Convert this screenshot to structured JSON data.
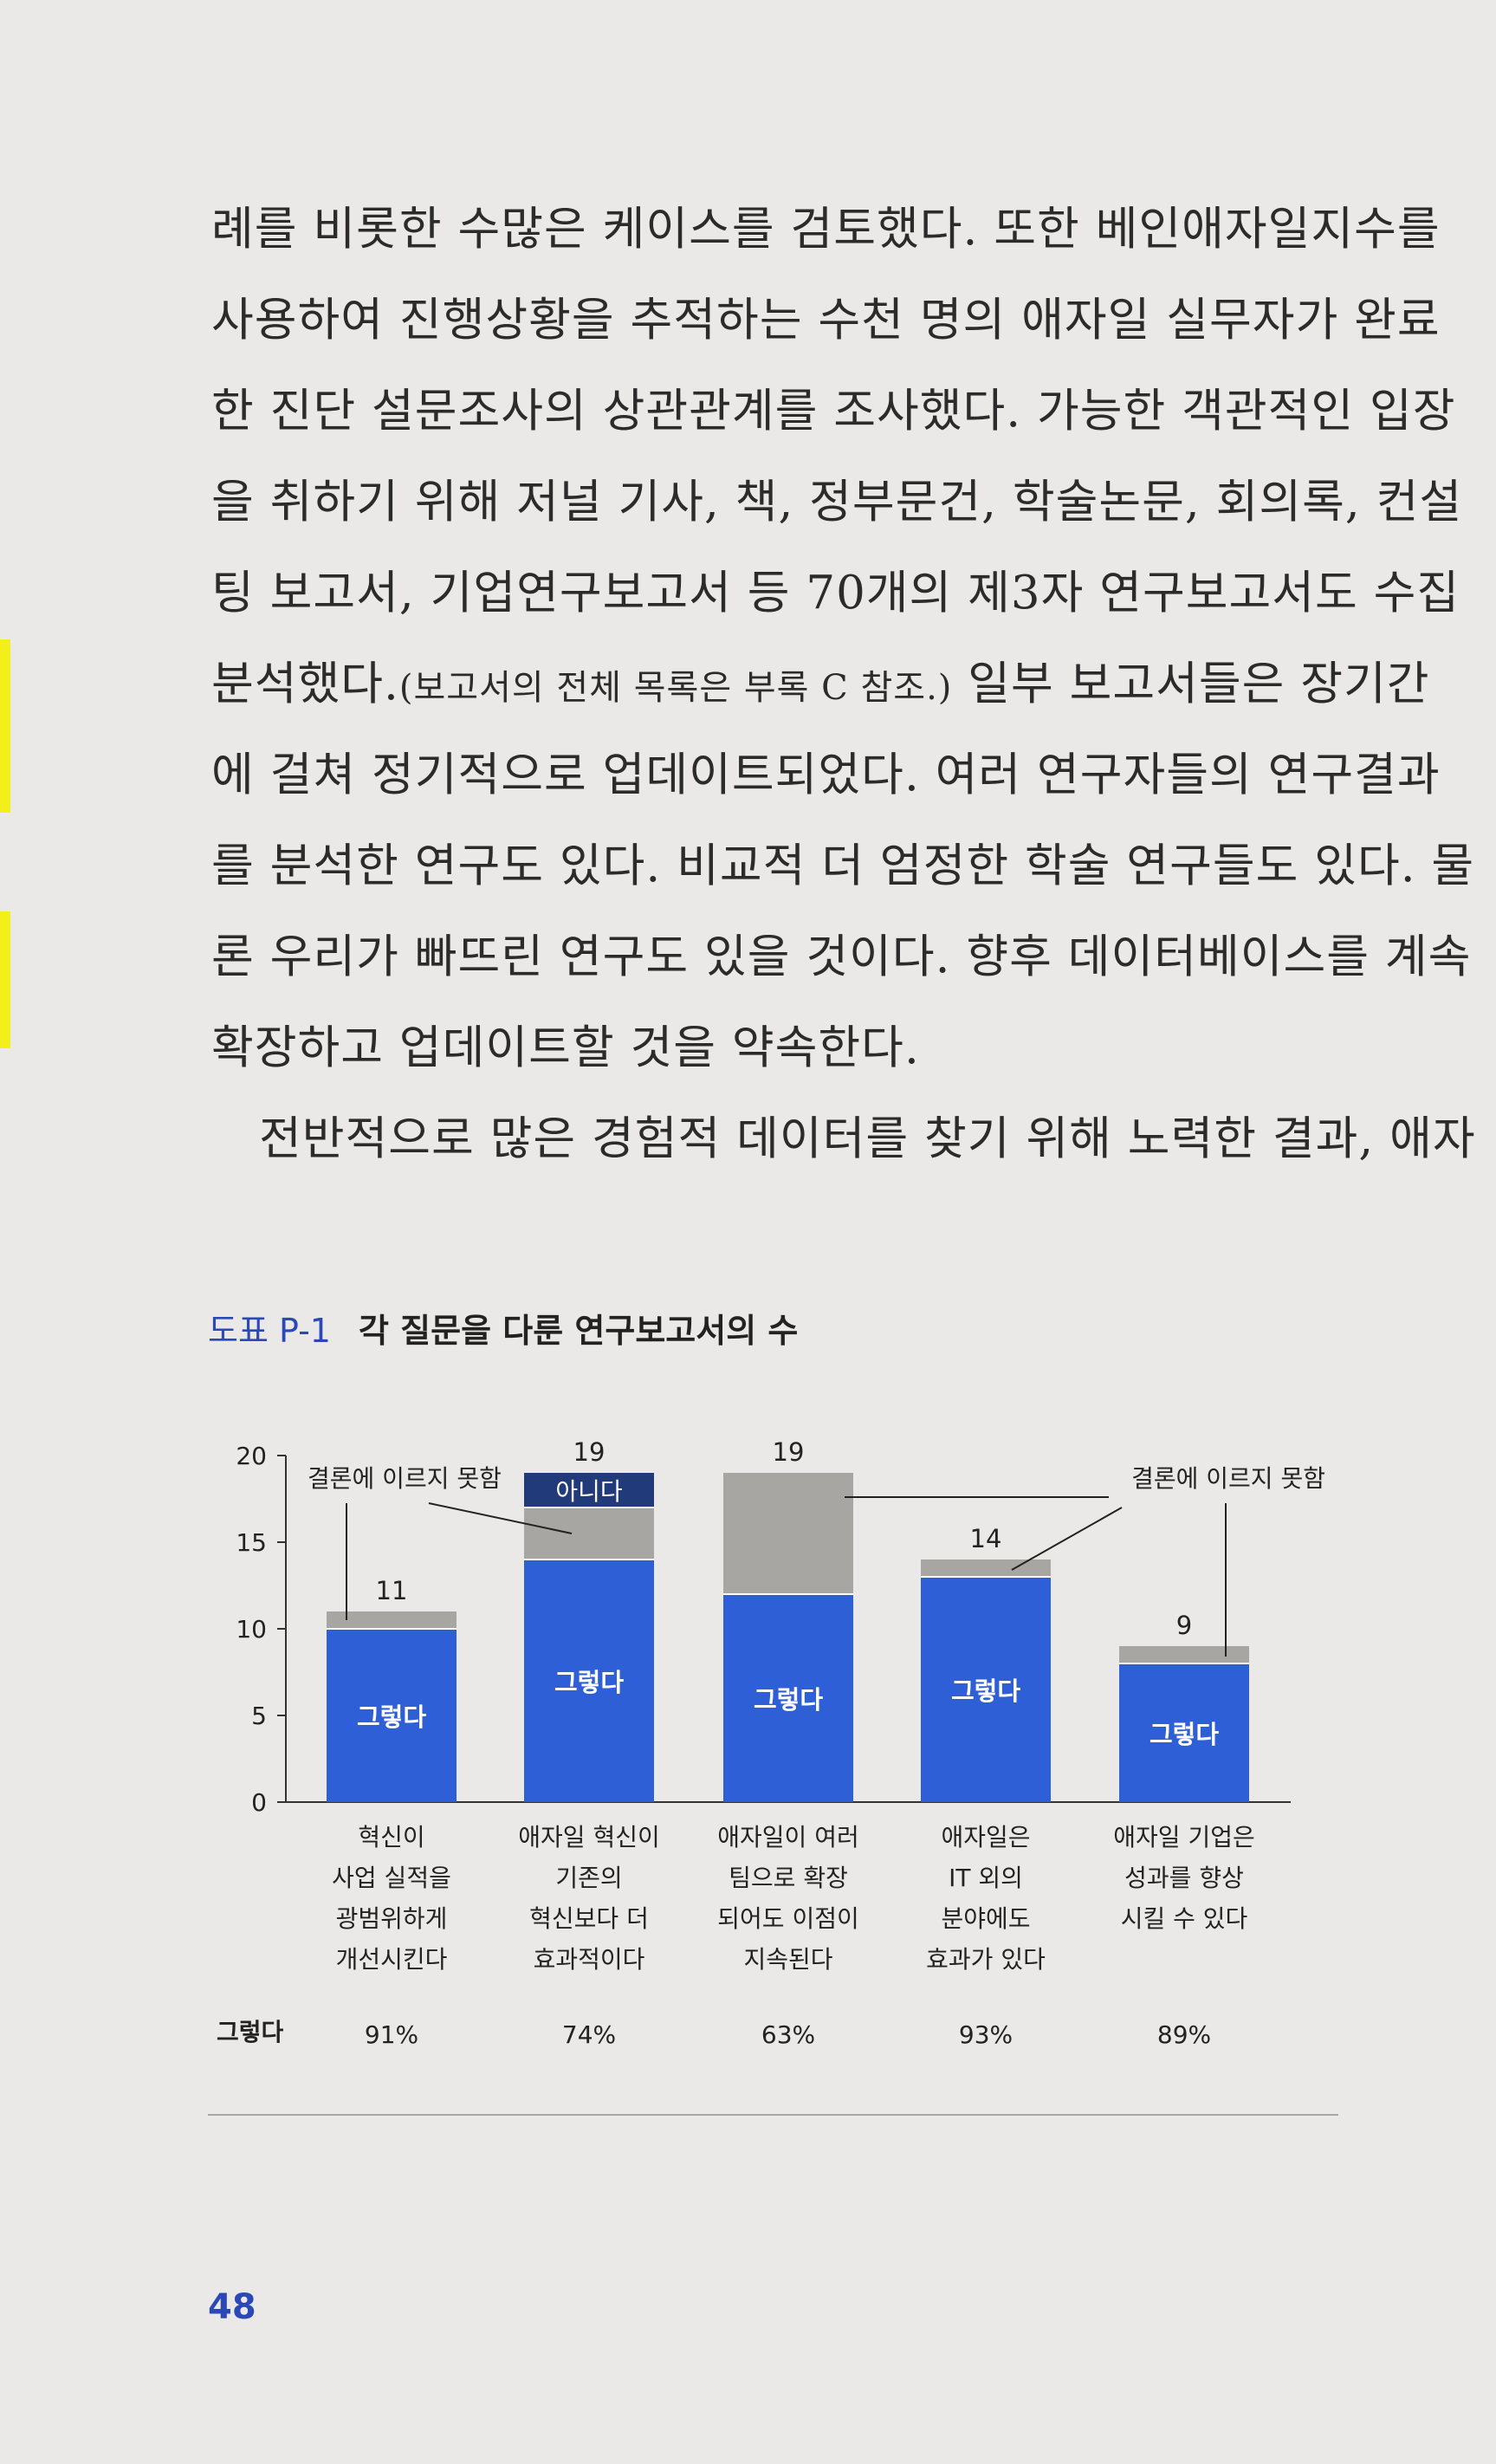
{
  "body_lines": [
    "례를 비롯한 수많은 케이스를 검토했다. 또한 베인애자일지수를",
    "사용하여 진행상황을 추적하는 수천 명의 애자일 실무자가 완료",
    "한 진단 설문조사의 상관관계를 조사했다. 가능한 객관적인 입장",
    "을 취하기 위해 저널 기사, 책, 정부문건, 학술논문, 회의록, 컨설",
    "팅 보고서, 기업연구보고서 등 70개의 제3자 연구보고서도 수집"
  ],
  "line6": {
    "start": "분석했다.",
    "small": "(보고서의 전체 목록은 부록 C 참조.)",
    "end": " 일부 보고서들은 장기간"
  },
  "body_lines2": [
    "에 걸쳐 정기적으로 업데이트되었다. 여러 연구자들의 연구결과",
    "를 분석한 연구도 있다. 비교적 더 엄정한 학술 연구들도 있다. 물",
    "론 우리가 빠뜨린 연구도 있을 것이다. 향후 데이터베이스를 계속"
  ],
  "line10": "확장하고 업데이트할 것을 약속한다.",
  "line11": "전반적으로 많은 경험적 데이터를 찾기 위해 노력한 결과, 애자",
  "figure": {
    "number": "도표 P-1",
    "title": "각 질문을 다룬 연구보고서의 수"
  },
  "chart_data": {
    "type": "bar",
    "stacked": true,
    "ylim": [
      0,
      20
    ],
    "yticks": [
      0,
      5,
      10,
      15,
      20
    ],
    "categories": [
      [
        "혁신이",
        "사업 실적을",
        "광범위하게",
        "개선시킨다"
      ],
      [
        "애자일 혁신이",
        "기존의",
        "혁신보다 더",
        "효과적이다"
      ],
      [
        "애자일이 여러",
        "팀으로 확장",
        "되어도 이점이",
        "지속된다"
      ],
      [
        "애자일은",
        "IT 외의",
        "분야에도",
        "효과가 있다"
      ],
      [
        "애자일 기업은",
        "성과를 향상",
        "시킬 수 있다"
      ]
    ],
    "series": [
      {
        "name": "그렇다",
        "values": [
          10,
          14,
          12,
          13,
          8
        ],
        "color": "#2f5fd6"
      },
      {
        "name": "결론에 이르지 못함",
        "values": [
          1,
          3,
          7,
          1,
          1
        ],
        "color": "#a8a6a3"
      },
      {
        "name": "아니다",
        "values": [
          0,
          2,
          0,
          0,
          0
        ],
        "color": "#203a7a"
      }
    ],
    "totals": [
      11,
      19,
      19,
      14,
      9
    ],
    "annotations": [
      "결론에 이르지 못함",
      "결론에 이르지 못함"
    ],
    "row_label": "그렇다",
    "percentages": [
      "91%",
      "74%",
      "63%",
      "93%",
      "89%"
    ]
  },
  "page_number": "48"
}
